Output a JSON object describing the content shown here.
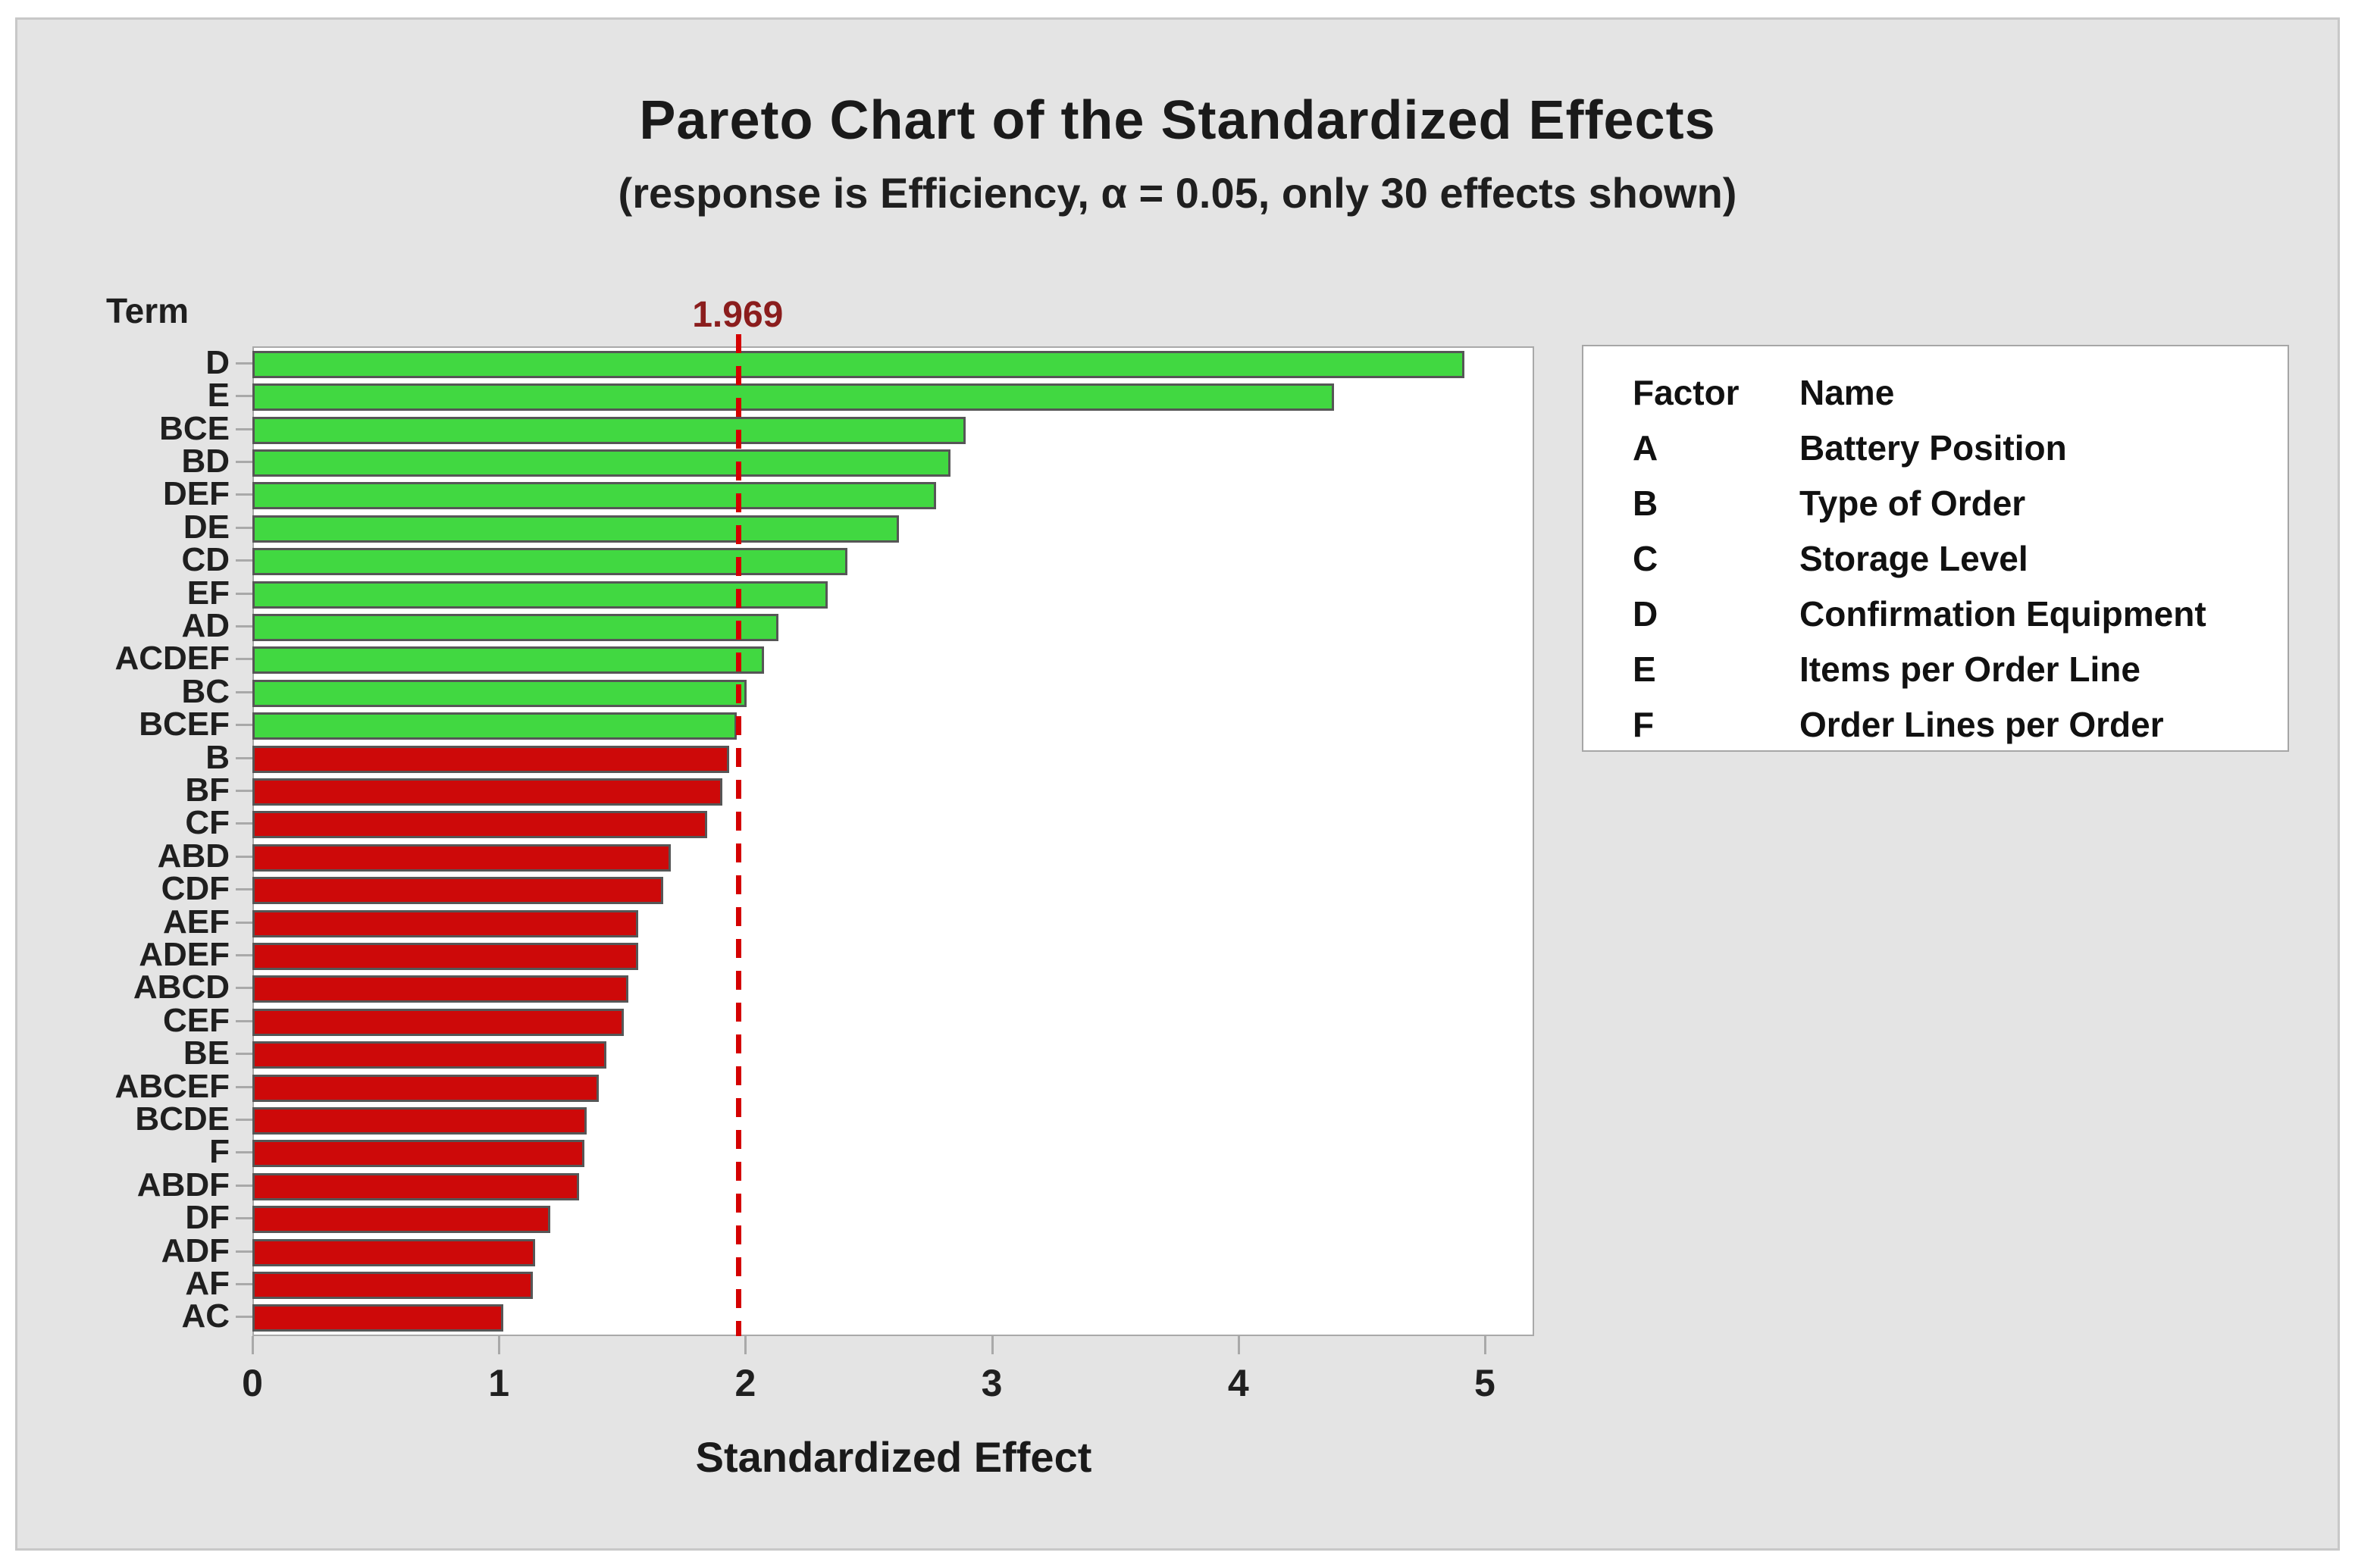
{
  "title": "Pareto Chart of the Standardized Effects",
  "subtitle": "(response is Efficiency, α = 0.05, only 30 effects shown)",
  "y_axis_title": "Term",
  "x_axis_title": "Standardized Effect",
  "reference_line": {
    "label": "1.969",
    "value": 1.969
  },
  "x_ticks": [
    "0",
    "1",
    "2",
    "3",
    "4",
    "5"
  ],
  "chart_data": {
    "type": "bar",
    "orientation": "horizontal",
    "title": "Pareto Chart of the Standardized Effects",
    "subtitle": "(response is Efficiency, α = 0.05, only 30 effects shown)",
    "xlabel": "Standardized Effect",
    "ylabel": "Term",
    "xlim": [
      0,
      5.2
    ],
    "grid": false,
    "reference_value": 1.969,
    "categories": [
      "D",
      "E",
      "BCE",
      "BD",
      "DEF",
      "DE",
      "CD",
      "EF",
      "AD",
      "ACDEF",
      "BC",
      "BCEF",
      "B",
      "BF",
      "CF",
      "ABD",
      "CDF",
      "AEF",
      "ADEF",
      "ABCD",
      "CEF",
      "BE",
      "ABCEF",
      "BCDE",
      "F",
      "ABDF",
      "DF",
      "ADF",
      "AF",
      "AC"
    ],
    "values": [
      4.93,
      4.4,
      2.9,
      2.84,
      2.78,
      2.63,
      2.42,
      2.34,
      2.14,
      2.08,
      2.01,
      1.97,
      1.94,
      1.91,
      1.85,
      1.7,
      1.67,
      1.57,
      1.57,
      1.53,
      1.51,
      1.44,
      1.41,
      1.36,
      1.35,
      1.33,
      1.21,
      1.15,
      1.14,
      1.02
    ],
    "significance_rule": "value >= 1.969 is significant (green), otherwise not significant (red)",
    "legend_position": "right"
  },
  "legend": {
    "headers": [
      "Factor",
      "Name"
    ],
    "rows": [
      [
        "A",
        "Battery Position"
      ],
      [
        "B",
        "Type of Order"
      ],
      [
        "C",
        "Storage Level"
      ],
      [
        "D",
        "Confirmation Equipment"
      ],
      [
        "E",
        "Items per Order Line"
      ],
      [
        "F",
        "Order Lines per Order"
      ]
    ]
  },
  "colors": {
    "panel_bg": "#e4e4e4",
    "panel_border": "#c8c8c8",
    "plot_bg": "#ffffff",
    "plot_border": "#a9a9a9",
    "bar_border": "#565656",
    "bar_significant": "#41d841",
    "bar_not_significant": "#cd0909",
    "reference_line": "#d40000",
    "reference_label_text": "#8b1d1d",
    "text": "#1a1a1a"
  }
}
